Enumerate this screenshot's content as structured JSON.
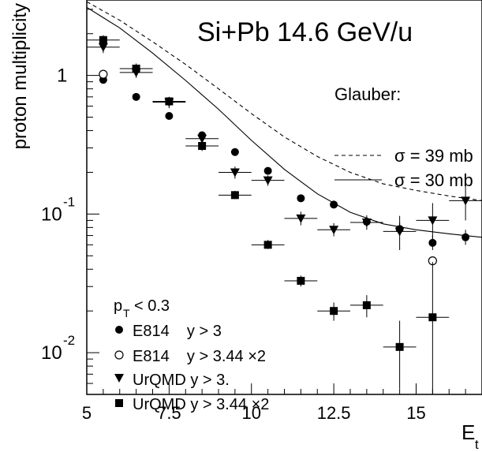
{
  "chart_data": {
    "type": "scatter",
    "title": "Si+Pb 14.6 GeV/u",
    "xlabel": "E",
    "xlabel_sub": "t",
    "ylabel": "proton multiplicity",
    "xlim": [
      5,
      17
    ],
    "ylim": [
      0.005,
      3.5
    ],
    "yscale": "log",
    "x_ticks": [
      {
        "value": 5,
        "label": "5"
      },
      {
        "value": 7.5,
        "label": "7.5"
      },
      {
        "value": 10,
        "label": "10"
      },
      {
        "value": 12.5,
        "label": "12.5"
      },
      {
        "value": 15,
        "label": "15"
      }
    ],
    "y_ticks": [
      {
        "value": 1,
        "label": "1"
      },
      {
        "value": 0.1,
        "base": "10",
        "exp": "-1"
      },
      {
        "value": 0.01,
        "base": "10",
        "exp": "-2"
      }
    ],
    "glauber_legend": {
      "header": "Glauber:",
      "entries": [
        {
          "label": "σ = 39 mb",
          "style": "dashed"
        },
        {
          "label": "σ = 30 mb",
          "style": "solid"
        }
      ]
    },
    "cut_label": {
      "p": "p",
      "sub": "T",
      "rest": "< 0.3"
    },
    "legend": [
      {
        "marker": "filled-circle",
        "label": "E814    y > 3"
      },
      {
        "marker": "open-circle",
        "label": "E814    y > 3.44 ×2"
      },
      {
        "marker": "filled-triangle-down",
        "label": "UrQMD y > 3."
      },
      {
        "marker": "filled-square",
        "label": "UrQMD y > 3.44 ×2"
      }
    ],
    "lines": [
      {
        "name": "σ = 39 mb",
        "style": "dashed",
        "x": [
          5,
          6,
          7,
          8,
          9,
          10,
          11,
          12,
          13,
          14,
          15,
          16,
          17
        ],
        "y": [
          3.4,
          2.5,
          1.75,
          1.2,
          0.8,
          0.53,
          0.36,
          0.26,
          0.2,
          0.165,
          0.148,
          0.135,
          0.125
        ]
      },
      {
        "name": "σ = 30 mb",
        "style": "solid",
        "x": [
          5,
          6,
          7,
          8,
          9,
          10,
          11,
          12,
          13,
          14,
          15,
          16,
          17
        ],
        "y": [
          3.1,
          2.2,
          1.45,
          0.92,
          0.57,
          0.34,
          0.21,
          0.14,
          0.103,
          0.085,
          0.077,
          0.072,
          0.068
        ]
      }
    ],
    "series": [
      {
        "marker": "filled-circle",
        "points": [
          {
            "x": 5.5,
            "y": 0.93,
            "xerr": 0,
            "ylo": 0.93,
            "yhi": 0.93
          },
          {
            "x": 6.5,
            "y": 0.7,
            "xerr": 0,
            "ylo": 0.7,
            "yhi": 0.7
          },
          {
            "x": 7.5,
            "y": 0.51,
            "xerr": 0,
            "ylo": 0.51,
            "yhi": 0.51
          },
          {
            "x": 8.5,
            "y": 0.37,
            "xerr": 0,
            "ylo": 0.37,
            "yhi": 0.37
          },
          {
            "x": 9.5,
            "y": 0.28,
            "xerr": 0,
            "ylo": 0.28,
            "yhi": 0.28
          },
          {
            "x": 10.5,
            "y": 0.205,
            "xerr": 0,
            "ylo": 0.205,
            "yhi": 0.205
          },
          {
            "x": 11.5,
            "y": 0.13,
            "xerr": 0,
            "ylo": 0.13,
            "yhi": 0.13
          },
          {
            "x": 12.5,
            "y": 0.117,
            "xerr": 0,
            "ylo": 0.117,
            "yhi": 0.117
          },
          {
            "x": 13.5,
            "y": 0.088,
            "xerr": 0,
            "ylo": 0.082,
            "yhi": 0.095
          },
          {
            "x": 14.5,
            "y": 0.078,
            "xerr": 0,
            "ylo": 0.07,
            "yhi": 0.087
          },
          {
            "x": 15.5,
            "y": 0.062,
            "xerr": 0,
            "ylo": 0.055,
            "yhi": 0.07
          },
          {
            "x": 16.5,
            "y": 0.068,
            "xerr": 0,
            "ylo": 0.06,
            "yhi": 0.077
          }
        ]
      },
      {
        "marker": "open-circle",
        "points": [
          {
            "x": 5.5,
            "y": 1.02,
            "xerr": 0,
            "ylo": 1.02,
            "yhi": 1.02
          },
          {
            "x": 15.5,
            "y": 0.046,
            "xerr": 0,
            "ylo": 0.046,
            "yhi": 0.046
          }
        ]
      },
      {
        "marker": "filled-triangle-down",
        "points": [
          {
            "x": 5.5,
            "y": 1.6,
            "xerr": 0.5,
            "ylo": 1.45,
            "yhi": 1.78
          },
          {
            "x": 6.5,
            "y": 1.05,
            "xerr": 0.5,
            "ylo": 0.96,
            "yhi": 1.15
          },
          {
            "x": 7.5,
            "y": 0.64,
            "xerr": 0.5,
            "ylo": 0.58,
            "yhi": 0.7
          },
          {
            "x": 8.5,
            "y": 0.35,
            "xerr": 0.5,
            "ylo": 0.31,
            "yhi": 0.39
          },
          {
            "x": 9.5,
            "y": 0.2,
            "xerr": 0.5,
            "ylo": 0.18,
            "yhi": 0.22
          },
          {
            "x": 10.5,
            "y": 0.175,
            "xerr": 0.5,
            "ylo": 0.16,
            "yhi": 0.19
          },
          {
            "x": 11.5,
            "y": 0.093,
            "xerr": 0.5,
            "ylo": 0.083,
            "yhi": 0.104
          },
          {
            "x": 12.5,
            "y": 0.077,
            "xerr": 0.5,
            "ylo": 0.069,
            "yhi": 0.086
          },
          {
            "x": 13.5,
            "y": 0.087,
            "xerr": 0.5,
            "ylo": 0.077,
            "yhi": 0.098
          },
          {
            "x": 14.5,
            "y": 0.075,
            "xerr": 0.5,
            "ylo": 0.055,
            "yhi": 0.097
          },
          {
            "x": 15.5,
            "y": 0.09,
            "xerr": 0.5,
            "ylo": 0.066,
            "yhi": 0.12
          },
          {
            "x": 16.5,
            "y": 0.125,
            "xerr": 0.5,
            "ylo": 0.09,
            "yhi": 0.16
          }
        ]
      },
      {
        "marker": "filled-square",
        "points": [
          {
            "x": 5.5,
            "y": 1.8,
            "xerr": 0.5,
            "ylo": 1.65,
            "yhi": 1.95
          },
          {
            "x": 6.5,
            "y": 1.12,
            "xerr": 0.5,
            "ylo": 1.02,
            "yhi": 1.22
          },
          {
            "x": 7.5,
            "y": 0.65,
            "xerr": 0.5,
            "ylo": 0.6,
            "yhi": 0.7
          },
          {
            "x": 8.5,
            "y": 0.31,
            "xerr": 0.5,
            "ylo": 0.285,
            "yhi": 0.335
          },
          {
            "x": 9.5,
            "y": 0.137,
            "xerr": 0.5,
            "ylo": 0.128,
            "yhi": 0.147
          },
          {
            "x": 10.5,
            "y": 0.06,
            "xerr": 0.5,
            "ylo": 0.056,
            "yhi": 0.065
          },
          {
            "x": 11.5,
            "y": 0.033,
            "xerr": 0.5,
            "ylo": 0.03,
            "yhi": 0.036
          },
          {
            "x": 12.5,
            "y": 0.02,
            "xerr": 0.5,
            "ylo": 0.017,
            "yhi": 0.023
          },
          {
            "x": 13.5,
            "y": 0.022,
            "xerr": 0.5,
            "ylo": 0.018,
            "yhi": 0.026
          },
          {
            "x": 14.5,
            "y": 0.011,
            "xerr": 0.5,
            "ylo": 0.0055,
            "yhi": 0.017
          },
          {
            "x": 15.5,
            "y": 0.018,
            "xerr": 0.5,
            "ylo": 0.005,
            "yhi": 0.045
          }
        ]
      }
    ]
  }
}
